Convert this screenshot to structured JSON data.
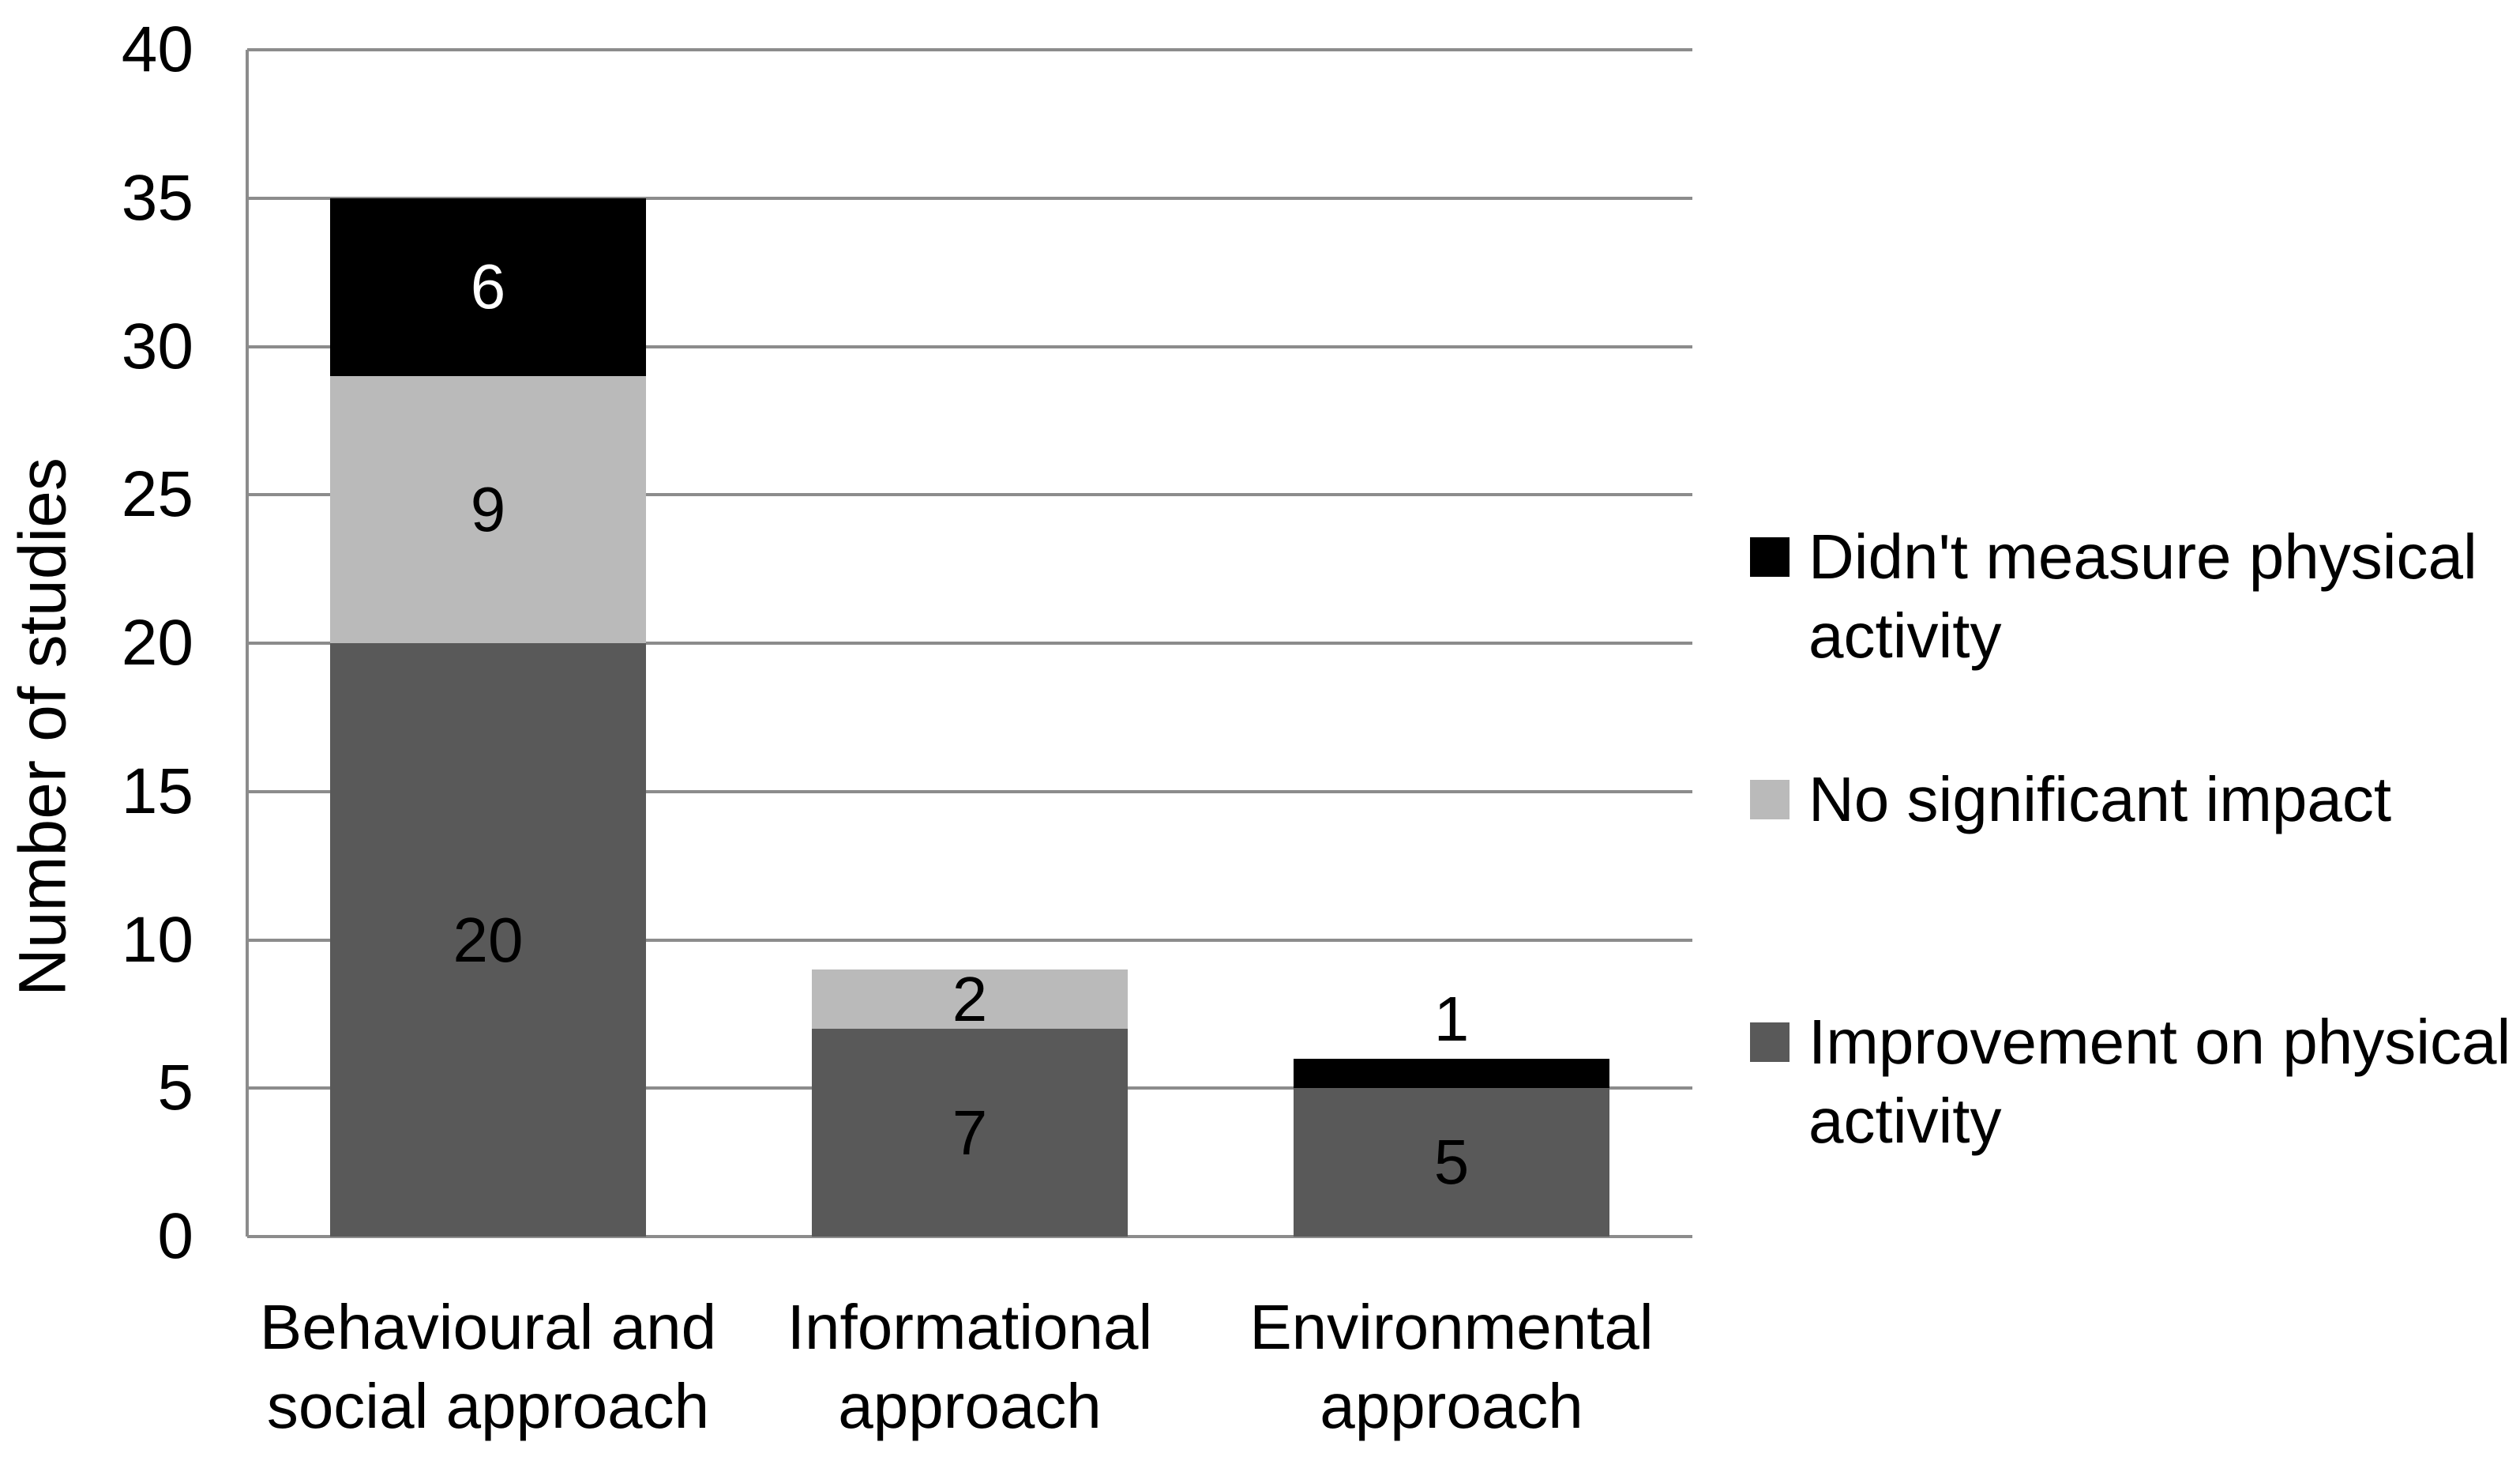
{
  "chart_data": {
    "type": "bar",
    "stacked": true,
    "categories": [
      "Behavioural and social approach",
      "Informational approach",
      "Environmental approach"
    ],
    "category_lines": [
      [
        "Behavioural and",
        "social approach"
      ],
      [
        "Informational",
        "approach"
      ],
      [
        "Environmental",
        "approach"
      ]
    ],
    "series": [
      {
        "name": "Improvement on physical activity",
        "color": "#595959",
        "label_color": "#000000",
        "values": [
          20,
          7,
          5
        ]
      },
      {
        "name": "No significant impact",
        "color": "#bababa",
        "label_color": "#000000",
        "values": [
          9,
          2,
          0
        ]
      },
      {
        "name": "Didn't measure physical activity",
        "color": "#000000",
        "label_color": "#ffffff",
        "values": [
          6,
          0,
          1
        ]
      }
    ],
    "totals": [
      35,
      9,
      6
    ],
    "ylabel": "Number of studies",
    "ylim": [
      0,
      40
    ],
    "ytick_step": 5,
    "ytick_labels": [
      "0",
      "5",
      "10",
      "15",
      "20",
      "25",
      "30",
      "35",
      "40"
    ],
    "grid": true,
    "gridline_color": "#8c8c8c",
    "axis_line_color": "#8c8c8c",
    "background_color": "#ffffff",
    "legend_position": "right",
    "legend": [
      {
        "label": "Didn't measure physical activity",
        "color": "#000000"
      },
      {
        "label": "No significant impact",
        "color": "#bababa"
      },
      {
        "label": "Improvement on physical activity",
        "color": "#595959"
      }
    ]
  }
}
